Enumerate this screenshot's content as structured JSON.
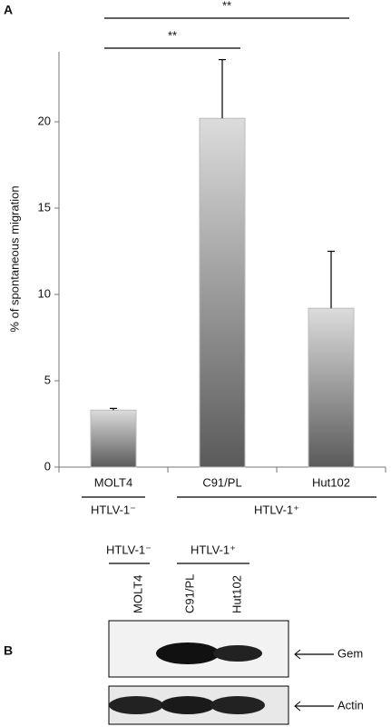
{
  "panel_a": "A",
  "panel_b": "B",
  "chart_data": {
    "type": "bar",
    "ylabel": "% of spontaneous migration",
    "categories": [
      "MOLT4",
      "C91/PL",
      "Hut102"
    ],
    "values": [
      3.3,
      20.2,
      9.2
    ],
    "errors": [
      0.1,
      3.4,
      3.3
    ],
    "ylim": [
      0,
      24
    ],
    "yticks": [
      0,
      5,
      10,
      15,
      20
    ],
    "groups": [
      {
        "label": "HTLV-1⁻",
        "from": 0,
        "to": 0
      },
      {
        "label": "HTLV-1⁺",
        "from": 1,
        "to": 2
      }
    ],
    "annotations": [
      {
        "label": "**",
        "from": 0,
        "to": 2
      },
      {
        "label": "**",
        "from": 0,
        "to": 1
      }
    ]
  },
  "blot": {
    "groups": [
      "HTLV-1⁻",
      "HTLV-1⁺"
    ],
    "lanes": [
      "MOLT4",
      "C91/PL",
      "Hut102"
    ],
    "bands": [
      "Gem",
      "Actin"
    ]
  }
}
